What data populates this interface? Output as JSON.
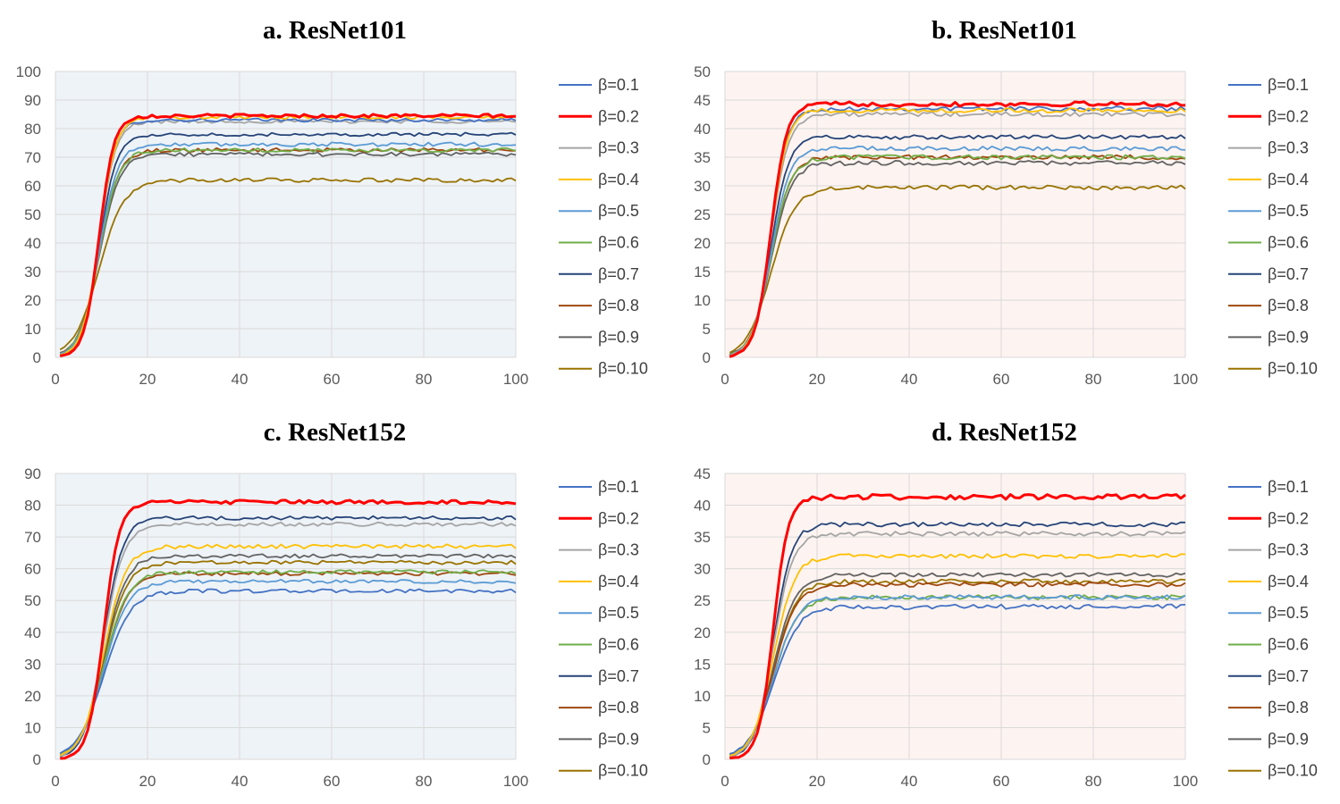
{
  "figure": {
    "legend_labels": [
      "β=0.1",
      "β=0.2",
      "β=0.3",
      "β=0.4",
      "β=0.5",
      "β=0.6",
      "β=0.7",
      "β=0.8",
      "β=0.9",
      "β=0.10"
    ],
    "series_colors": [
      "#4472C4",
      "#FF0000",
      "#A5A5A5",
      "#FFC000",
      "#5B9BD5",
      "#70AD47",
      "#264478",
      "#9E480E",
      "#636363",
      "#997300"
    ],
    "panel_backgrounds": {
      "blue": "#EEF3F7",
      "pink": "#FDF4F1"
    }
  },
  "chart_data": [
    {
      "type": "line",
      "title": "a. ResNet101",
      "background": "blue",
      "xlim": [
        0,
        100
      ],
      "ylim": [
        0,
        100
      ],
      "xticks": [
        0,
        20,
        40,
        60,
        80,
        100
      ],
      "yticks": [
        0,
        10,
        20,
        30,
        40,
        50,
        60,
        70,
        80,
        90,
        100
      ],
      "x_range": [
        1,
        100
      ],
      "x_midpoint": 9.5,
      "series": [
        {
          "name": "β=0.1",
          "final": 83,
          "rise_width": 1.7,
          "noise": 0.6
        },
        {
          "name": "β=0.2",
          "final": 84.5,
          "rise_width": 1.6,
          "noise": 0.6
        },
        {
          "name": "β=0.3",
          "final": 82.5,
          "rise_width": 1.8,
          "noise": 0.6
        },
        {
          "name": "β=0.4",
          "final": 84,
          "rise_width": 1.8,
          "noise": 0.6
        },
        {
          "name": "β=0.5",
          "final": 74.5,
          "rise_width": 2.0,
          "noise": 0.7
        },
        {
          "name": "β=0.6",
          "final": 72.5,
          "rise_width": 2.1,
          "noise": 0.7
        },
        {
          "name": "β=0.7",
          "final": 78,
          "rise_width": 1.9,
          "noise": 0.6
        },
        {
          "name": "β=0.8",
          "final": 72.5,
          "rise_width": 2.1,
          "noise": 0.7
        },
        {
          "name": "β=0.9",
          "final": 71,
          "rise_width": 2.2,
          "noise": 0.7
        },
        {
          "name": "β=0.10",
          "final": 62,
          "rise_width": 2.7,
          "noise": 0.7
        }
      ]
    },
    {
      "type": "line",
      "title": "b. ResNet101",
      "background": "pink",
      "xlim": [
        0,
        100
      ],
      "ylim": [
        0,
        50
      ],
      "xticks": [
        0,
        20,
        40,
        60,
        80,
        100
      ],
      "yticks": [
        0,
        5,
        10,
        15,
        20,
        25,
        30,
        35,
        40,
        45,
        50
      ],
      "x_range": [
        1,
        100
      ],
      "x_midpoint": 10,
      "series": [
        {
          "name": "β=0.1",
          "final": 43.5,
          "rise_width": 1.8,
          "noise": 0.4
        },
        {
          "name": "β=0.2",
          "final": 44.3,
          "rise_width": 1.7,
          "noise": 0.4
        },
        {
          "name": "β=0.3",
          "final": 42.5,
          "rise_width": 1.9,
          "noise": 0.4
        },
        {
          "name": "β=0.4",
          "final": 43.2,
          "rise_width": 1.8,
          "noise": 0.4
        },
        {
          "name": "β=0.5",
          "final": 36.5,
          "rise_width": 2.0,
          "noise": 0.4
        },
        {
          "name": "β=0.6",
          "final": 35,
          "rise_width": 2.1,
          "noise": 0.4
        },
        {
          "name": "β=0.7",
          "final": 38.5,
          "rise_width": 1.9,
          "noise": 0.4
        },
        {
          "name": "β=0.8",
          "final": 35,
          "rise_width": 2.1,
          "noise": 0.4
        },
        {
          "name": "β=0.9",
          "final": 34,
          "rise_width": 2.2,
          "noise": 0.4
        },
        {
          "name": "β=0.10",
          "final": 29.7,
          "rise_width": 2.6,
          "noise": 0.4
        }
      ]
    },
    {
      "type": "line",
      "title": "c. ResNet152",
      "background": "blue",
      "xlim": [
        0,
        100
      ],
      "ylim": [
        0,
        90
      ],
      "xticks": [
        0,
        20,
        40,
        60,
        80,
        100
      ],
      "yticks": [
        0,
        10,
        20,
        30,
        40,
        50,
        60,
        70,
        80,
        90
      ],
      "x_range": [
        1,
        100
      ],
      "x_midpoint": 10.5,
      "series": [
        {
          "name": "β=0.1",
          "final": 53,
          "rise_width": 2.9,
          "noise": 0.6
        },
        {
          "name": "β=0.2",
          "final": 81,
          "rise_width": 1.7,
          "noise": 0.6
        },
        {
          "name": "β=0.3",
          "final": 74,
          "rise_width": 2.2,
          "noise": 0.6
        },
        {
          "name": "β=0.4",
          "final": 67,
          "rise_width": 2.4,
          "noise": 0.7
        },
        {
          "name": "β=0.5",
          "final": 56,
          "rise_width": 2.6,
          "noise": 0.6
        },
        {
          "name": "β=0.6",
          "final": 59,
          "rise_width": 2.6,
          "noise": 0.6
        },
        {
          "name": "β=0.7",
          "final": 76,
          "rise_width": 2.1,
          "noise": 0.6
        },
        {
          "name": "β=0.8",
          "final": 58.5,
          "rise_width": 2.6,
          "noise": 0.6
        },
        {
          "name": "β=0.9",
          "final": 64,
          "rise_width": 2.4,
          "noise": 0.6
        },
        {
          "name": "β=0.10",
          "final": 62,
          "rise_width": 2.5,
          "noise": 0.6
        }
      ]
    },
    {
      "type": "line",
      "title": "d. ResNet152",
      "background": "pink",
      "xlim": [
        0,
        100
      ],
      "ylim": [
        0,
        45
      ],
      "xticks": [
        0,
        20,
        40,
        60,
        80,
        100
      ],
      "yticks": [
        0,
        5,
        10,
        15,
        20,
        25,
        30,
        35,
        40,
        45
      ],
      "x_range": [
        1,
        100
      ],
      "x_midpoint": 10.5,
      "series": [
        {
          "name": "β=0.1",
          "final": 24,
          "rise_width": 2.8,
          "noise": 0.4
        },
        {
          "name": "β=0.2",
          "final": 41.3,
          "rise_width": 1.6,
          "noise": 0.4
        },
        {
          "name": "β=0.3",
          "final": 35.5,
          "rise_width": 2.1,
          "noise": 0.35
        },
        {
          "name": "β=0.4",
          "final": 32,
          "rise_width": 2.3,
          "noise": 0.35
        },
        {
          "name": "β=0.5",
          "final": 25.5,
          "rise_width": 2.6,
          "noise": 0.35
        },
        {
          "name": "β=0.6",
          "final": 25.5,
          "rise_width": 2.6,
          "noise": 0.35
        },
        {
          "name": "β=0.7",
          "final": 37,
          "rise_width": 2.0,
          "noise": 0.35
        },
        {
          "name": "β=0.8",
          "final": 27.5,
          "rise_width": 2.5,
          "noise": 0.35
        },
        {
          "name": "β=0.9",
          "final": 29,
          "rise_width": 2.4,
          "noise": 0.35
        },
        {
          "name": "β=0.10",
          "final": 28,
          "rise_width": 2.5,
          "noise": 0.35
        }
      ]
    }
  ]
}
